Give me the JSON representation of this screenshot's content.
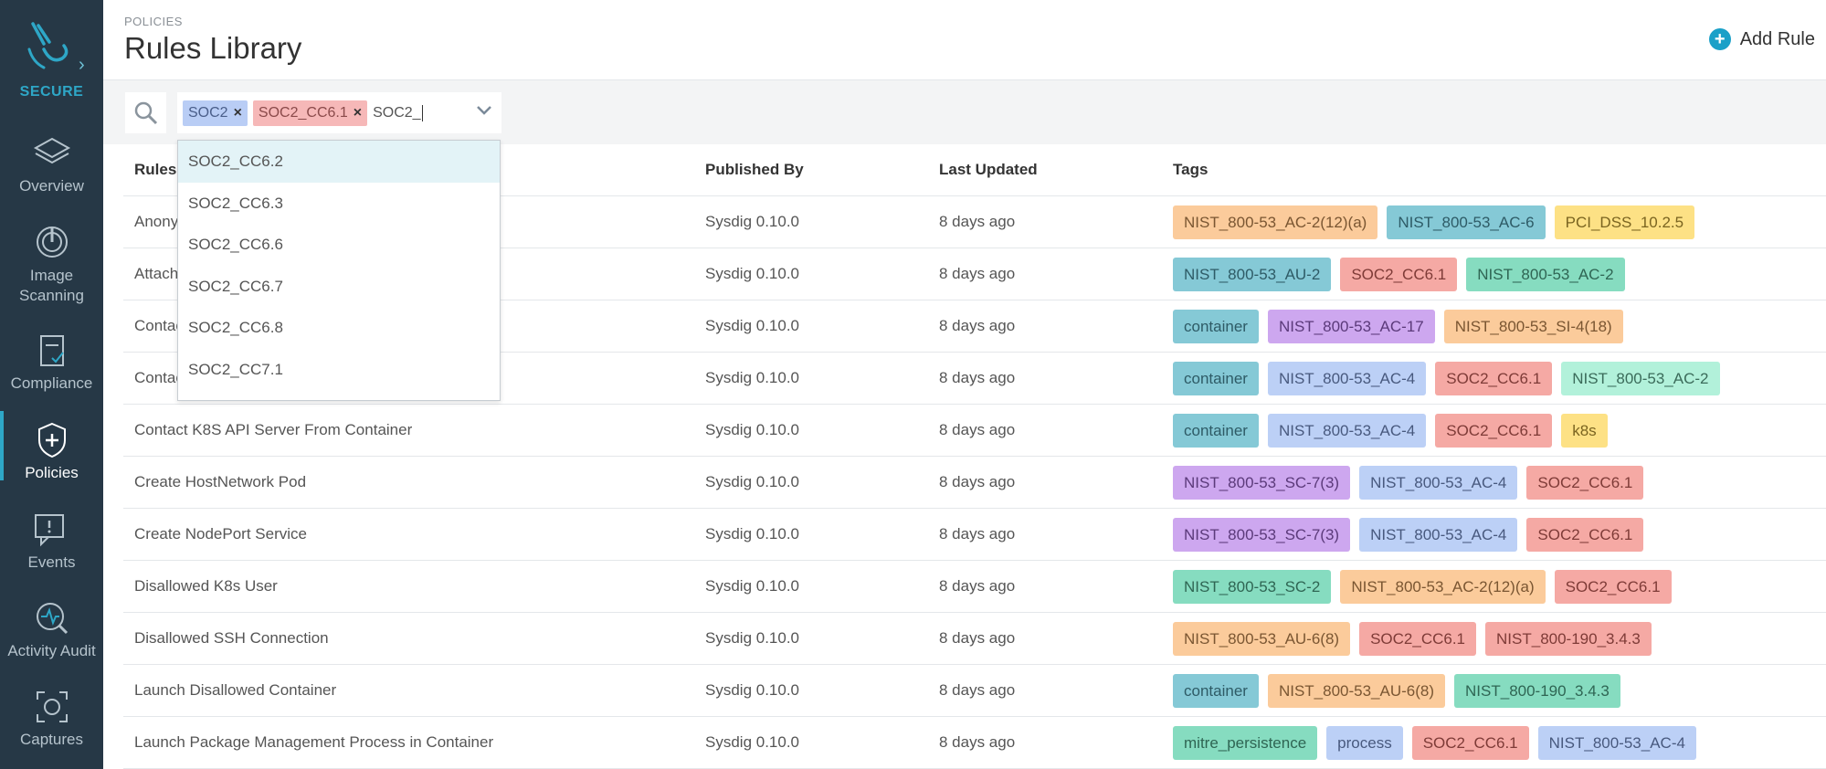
{
  "sidebar": {
    "brand": "SECURE",
    "items": [
      {
        "label": "Overview",
        "icon": "layers-icon"
      },
      {
        "label": "Image Scanning",
        "icon": "scan-icon"
      },
      {
        "label": "Compliance",
        "icon": "clipboard-check-icon"
      },
      {
        "label": "Policies",
        "icon": "shield-plus-icon",
        "active": true
      },
      {
        "label": "Events",
        "icon": "chat-alert-icon"
      },
      {
        "label": "Activity Audit",
        "icon": "magnify-pulse-icon"
      },
      {
        "label": "Captures",
        "icon": "capture-icon"
      }
    ]
  },
  "header": {
    "breadcrumb": "POLICIES",
    "title": "Rules Library",
    "add_rule_label": "Add Rule"
  },
  "filter": {
    "chips": [
      "SOC2",
      "SOC2_CC6.1"
    ],
    "typed_text": "SOC2_"
  },
  "dropdown": {
    "options": [
      "SOC2_CC6.2",
      "SOC2_CC6.3",
      "SOC2_CC6.6",
      "SOC2_CC6.7",
      "SOC2_CC6.8",
      "SOC2_CC7.1"
    ]
  },
  "table": {
    "columns": [
      "Rules",
      "Published By",
      "Last Updated",
      "Tags"
    ],
    "rows": [
      {
        "rule": "Anonymous Request Allowed",
        "published_by": "Sysdig 0.10.0",
        "updated": "8 days ago",
        "tags": [
          [
            "NIST_800-53_AC-2(12)(a)",
            "orange"
          ],
          [
            "NIST_800-53_AC-6",
            "teal"
          ],
          [
            "PCI_DSS_10.2.5",
            "yellow"
          ]
        ]
      },
      {
        "rule": "Attach/Exec Pod",
        "published_by": "Sysdig 0.10.0",
        "updated": "8 days ago",
        "tags": [
          [
            "NIST_800-53_AU-2",
            "teal"
          ],
          [
            "SOC2_CC6.1",
            "red"
          ],
          [
            "NIST_800-53_AC-2",
            "green"
          ]
        ]
      },
      {
        "rule": "Contact EC2 Instance Metadata Service",
        "published_by": "Sysdig 0.10.0",
        "updated": "8 days ago",
        "tags": [
          [
            "container",
            "teal"
          ],
          [
            "NIST_800-53_AC-17",
            "purple"
          ],
          [
            "NIST_800-53_SI-4(18)",
            "orange"
          ]
        ]
      },
      {
        "rule": "Contact cloud metadata service from container",
        "published_by": "Sysdig 0.10.0",
        "updated": "8 days ago",
        "tags": [
          [
            "container",
            "teal"
          ],
          [
            "NIST_800-53_AC-4",
            "blue"
          ],
          [
            "SOC2_CC6.1",
            "red"
          ],
          [
            "NIST_800-53_AC-2",
            "mint"
          ]
        ]
      },
      {
        "rule": "Contact K8S API Server From Container",
        "published_by": "Sysdig 0.10.0",
        "updated": "8 days ago",
        "tags": [
          [
            "container",
            "teal"
          ],
          [
            "NIST_800-53_AC-4",
            "blue"
          ],
          [
            "SOC2_CC6.1",
            "red"
          ],
          [
            "k8s",
            "yellow"
          ]
        ]
      },
      {
        "rule": "Create HostNetwork Pod",
        "published_by": "Sysdig 0.10.0",
        "updated": "8 days ago",
        "tags": [
          [
            "NIST_800-53_SC-7(3)",
            "purple"
          ],
          [
            "NIST_800-53_AC-4",
            "blue"
          ],
          [
            "SOC2_CC6.1",
            "red"
          ]
        ]
      },
      {
        "rule": "Create NodePort Service",
        "published_by": "Sysdig 0.10.0",
        "updated": "8 days ago",
        "tags": [
          [
            "NIST_800-53_SC-7(3)",
            "purple"
          ],
          [
            "NIST_800-53_AC-4",
            "blue"
          ],
          [
            "SOC2_CC6.1",
            "red"
          ]
        ]
      },
      {
        "rule": "Disallowed K8s User",
        "published_by": "Sysdig 0.10.0",
        "updated": "8 days ago",
        "tags": [
          [
            "NIST_800-53_SC-2",
            "green"
          ],
          [
            "NIST_800-53_AC-2(12)(a)",
            "orange"
          ],
          [
            "SOC2_CC6.1",
            "red"
          ]
        ]
      },
      {
        "rule": "Disallowed SSH Connection",
        "published_by": "Sysdig 0.10.0",
        "updated": "8 days ago",
        "tags": [
          [
            "NIST_800-53_AU-6(8)",
            "orange"
          ],
          [
            "SOC2_CC6.1",
            "red"
          ],
          [
            "NIST_800-190_3.4.3",
            "red"
          ]
        ]
      },
      {
        "rule": "Launch Disallowed Container",
        "published_by": "Sysdig 0.10.0",
        "updated": "8 days ago",
        "tags": [
          [
            "container",
            "teal"
          ],
          [
            "NIST_800-53_AU-6(8)",
            "orange"
          ],
          [
            "NIST_800-190_3.4.3",
            "green"
          ]
        ]
      },
      {
        "rule": "Launch Package Management Process in Container",
        "published_by": "Sysdig 0.10.0",
        "updated": "8 days ago",
        "tags": [
          [
            "mitre_persistence",
            "green"
          ],
          [
            "process",
            "blue"
          ],
          [
            "SOC2_CC6.1",
            "red"
          ],
          [
            "NIST_800-53_AC-4",
            "blue"
          ]
        ]
      }
    ]
  },
  "tag_colors": {
    "orange": {
      "bg": "#fbcb9b",
      "fg": "#7a5632"
    },
    "teal": {
      "bg": "#85c9d6",
      "fg": "#2e5b66"
    },
    "yellow": {
      "bg": "#fde185",
      "fg": "#7a6420"
    },
    "red": {
      "bg": "#f5a9a4",
      "fg": "#7e3b37"
    },
    "green": {
      "bg": "#86dcc0",
      "fg": "#2f6553"
    },
    "purple": {
      "bg": "#cda7ef",
      "fg": "#5b3a7a"
    },
    "blue": {
      "bg": "#bcd0f6",
      "fg": "#48597e"
    },
    "mint": {
      "bg": "#b2f1da",
      "fg": "#3b6b5a"
    }
  }
}
